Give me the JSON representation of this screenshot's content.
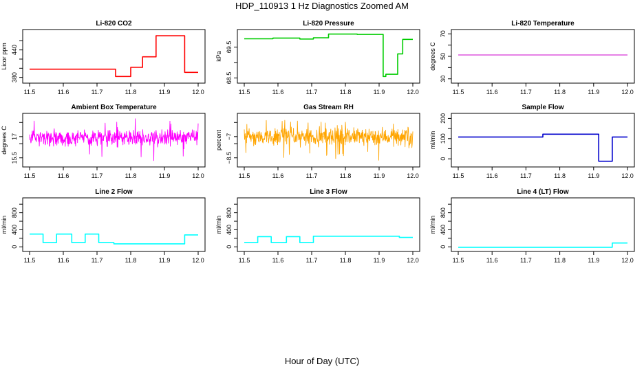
{
  "figure": {
    "title": "HDP_110913  1 Hz Diagnostics Zoomed AM",
    "xlabel": "Hour of Day (UTC)"
  },
  "chart_data": [
    {
      "type": "line",
      "title": "Li-820 CO2",
      "ylabel": "Licor ppm",
      "color": "#ff0000",
      "xlim": [
        11.5,
        12.0
      ],
      "xticks": [
        11.5,
        11.6,
        11.7,
        11.8,
        11.9,
        12.0
      ],
      "ylim": [
        372,
        480
      ],
      "yticks": [
        380,
        440
      ],
      "yticks_minor": [
        400,
        420,
        460
      ],
      "series": [
        {
          "style": "step",
          "x": [
            11.5,
            11.755,
            11.755,
            11.8,
            11.8,
            11.835,
            11.835,
            11.875,
            11.875,
            11.96,
            11.96,
            12.0
          ],
          "y": [
            398,
            398,
            382,
            382,
            402,
            402,
            425,
            425,
            471,
            471,
            391,
            391
          ]
        }
      ]
    },
    {
      "type": "line",
      "title": "Li-820 Pressure",
      "ylabel": "kPa",
      "color": "#00cc00",
      "xlim": [
        11.5,
        12.0
      ],
      "xticks": [
        11.5,
        11.6,
        11.7,
        11.8,
        11.9,
        12.0
      ],
      "ylim": [
        68.4,
        70.0
      ],
      "yticks": [
        68.5,
        69.5
      ],
      "yticks_minor": [
        69.0
      ],
      "series": [
        {
          "style": "step",
          "x": [
            11.5,
            11.585,
            11.585,
            11.665,
            11.665,
            11.705,
            11.705,
            11.75,
            11.75,
            11.835,
            11.835,
            11.912,
            11.912,
            11.92,
            11.92,
            11.955,
            11.955,
            11.97,
            11.97,
            12.0
          ],
          "y": [
            69.77,
            69.77,
            69.79,
            69.79,
            69.76,
            69.76,
            69.8,
            69.8,
            69.92,
            69.92,
            69.91,
            69.91,
            68.55,
            68.55,
            68.62,
            68.62,
            69.28,
            69.28,
            69.75,
            69.75
          ]
        }
      ]
    },
    {
      "type": "line",
      "title": "Li-820 Temperature",
      "ylabel": "degrees C",
      "color": "#cc00cc",
      "xlim": [
        11.5,
        12.0
      ],
      "xticks": [
        11.5,
        11.6,
        11.7,
        11.8,
        11.9,
        12.0
      ],
      "ylim": [
        28,
        72
      ],
      "yticks": [
        30,
        50,
        70
      ],
      "yticks_minor": [
        40,
        60
      ],
      "series": [
        {
          "style": "line",
          "x": [
            11.5,
            12.0
          ],
          "y": [
            51.2,
            51.2
          ]
        }
      ]
    },
    {
      "type": "line",
      "title": "Ambient Box Temperature",
      "ylabel": "degrees C",
      "color": "#ff00ff",
      "xlim": [
        11.5,
        12.0
      ],
      "xticks": [
        11.5,
        11.6,
        11.7,
        11.8,
        11.9,
        12.0
      ],
      "ylim": [
        15.0,
        18.5
      ],
      "yticks": [
        15.5,
        17.0
      ],
      "yticks_minor": [
        16.5,
        18.0
      ],
      "series": [
        {
          "style": "noise",
          "mean": 16.9,
          "spread": 0.7,
          "min": 15.2,
          "max": 18.3
        }
      ]
    },
    {
      "type": "line",
      "title": "Gas Stream RH",
      "ylabel": "percent",
      "color": "#ffa500",
      "xlim": [
        11.5,
        12.0
      ],
      "xticks": [
        11.5,
        11.6,
        11.7,
        11.8,
        11.9,
        12.0
      ],
      "ylim": [
        -9.0,
        -5.5
      ],
      "yticks": [
        -8.5,
        -7.0
      ],
      "yticks_minor": [
        -7.5,
        -6.0
      ],
      "series": [
        {
          "style": "noise",
          "mean": -7.0,
          "spread": 0.75,
          "min": -8.7,
          "max": -5.8
        }
      ]
    },
    {
      "type": "line",
      "title": "Sample Flow",
      "ylabel": "ml/min",
      "color": "#0000cc",
      "xlim": [
        11.5,
        12.0
      ],
      "xticks": [
        11.5,
        11.6,
        11.7,
        11.8,
        11.9,
        12.0
      ],
      "ylim": [
        -30,
        215
      ],
      "yticks": [
        0,
        100,
        200
      ],
      "yticks_minor": [
        50,
        150
      ],
      "series": [
        {
          "style": "step",
          "x": [
            11.5,
            11.75,
            11.75,
            11.915,
            11.915,
            11.955,
            11.955,
            12.0
          ],
          "y": [
            108,
            108,
            122,
            122,
            -12,
            -12,
            108,
            108
          ]
        }
      ]
    },
    {
      "type": "line",
      "title": "Line 2 Flow",
      "ylabel": "ml/min",
      "color": "#00ffff",
      "xlim": [
        11.5,
        12.0
      ],
      "xticks": [
        11.5,
        11.6,
        11.7,
        11.8,
        11.9,
        12.0
      ],
      "ylim": [
        -60,
        1100
      ],
      "yticks": [
        0,
        400,
        800
      ],
      "yticks_minor": [
        200,
        600,
        1000
      ],
      "series": [
        {
          "style": "step",
          "x": [
            11.5,
            11.54,
            11.54,
            11.58,
            11.58,
            11.625,
            11.625,
            11.665,
            11.665,
            11.705,
            11.705,
            11.75,
            11.75,
            11.96,
            11.96,
            12.0
          ],
          "y": [
            300,
            300,
            100,
            100,
            300,
            300,
            100,
            100,
            300,
            300,
            100,
            100,
            70,
            70,
            280,
            280
          ]
        }
      ]
    },
    {
      "type": "line",
      "title": "Line 3 Flow",
      "ylabel": "ml/min",
      "color": "#00ffff",
      "xlim": [
        11.5,
        12.0
      ],
      "xticks": [
        11.5,
        11.6,
        11.7,
        11.8,
        11.9,
        12.0
      ],
      "ylim": [
        -60,
        1100
      ],
      "yticks": [
        0,
        400,
        800
      ],
      "yticks_minor": [
        200,
        600,
        1000
      ],
      "series": [
        {
          "style": "step",
          "x": [
            11.5,
            11.54,
            11.54,
            11.58,
            11.58,
            11.625,
            11.625,
            11.665,
            11.665,
            11.705,
            11.705,
            11.96,
            11.96,
            12.0
          ],
          "y": [
            100,
            100,
            240,
            240,
            100,
            100,
            240,
            240,
            100,
            100,
            250,
            250,
            220,
            220
          ]
        }
      ]
    },
    {
      "type": "line",
      "title": "Line 4 (LT) Flow",
      "ylabel": "ml/min",
      "color": "#00ffff",
      "xlim": [
        11.5,
        12.0
      ],
      "xticks": [
        11.5,
        11.6,
        11.7,
        11.8,
        11.9,
        12.0
      ],
      "ylim": [
        -60,
        1100
      ],
      "yticks": [
        0,
        400,
        800
      ],
      "yticks_minor": [
        200,
        600,
        1000
      ],
      "series": [
        {
          "style": "step",
          "x": [
            11.5,
            11.955,
            11.955,
            12.0
          ],
          "y": [
            -10,
            -10,
            90,
            90
          ]
        }
      ]
    }
  ]
}
